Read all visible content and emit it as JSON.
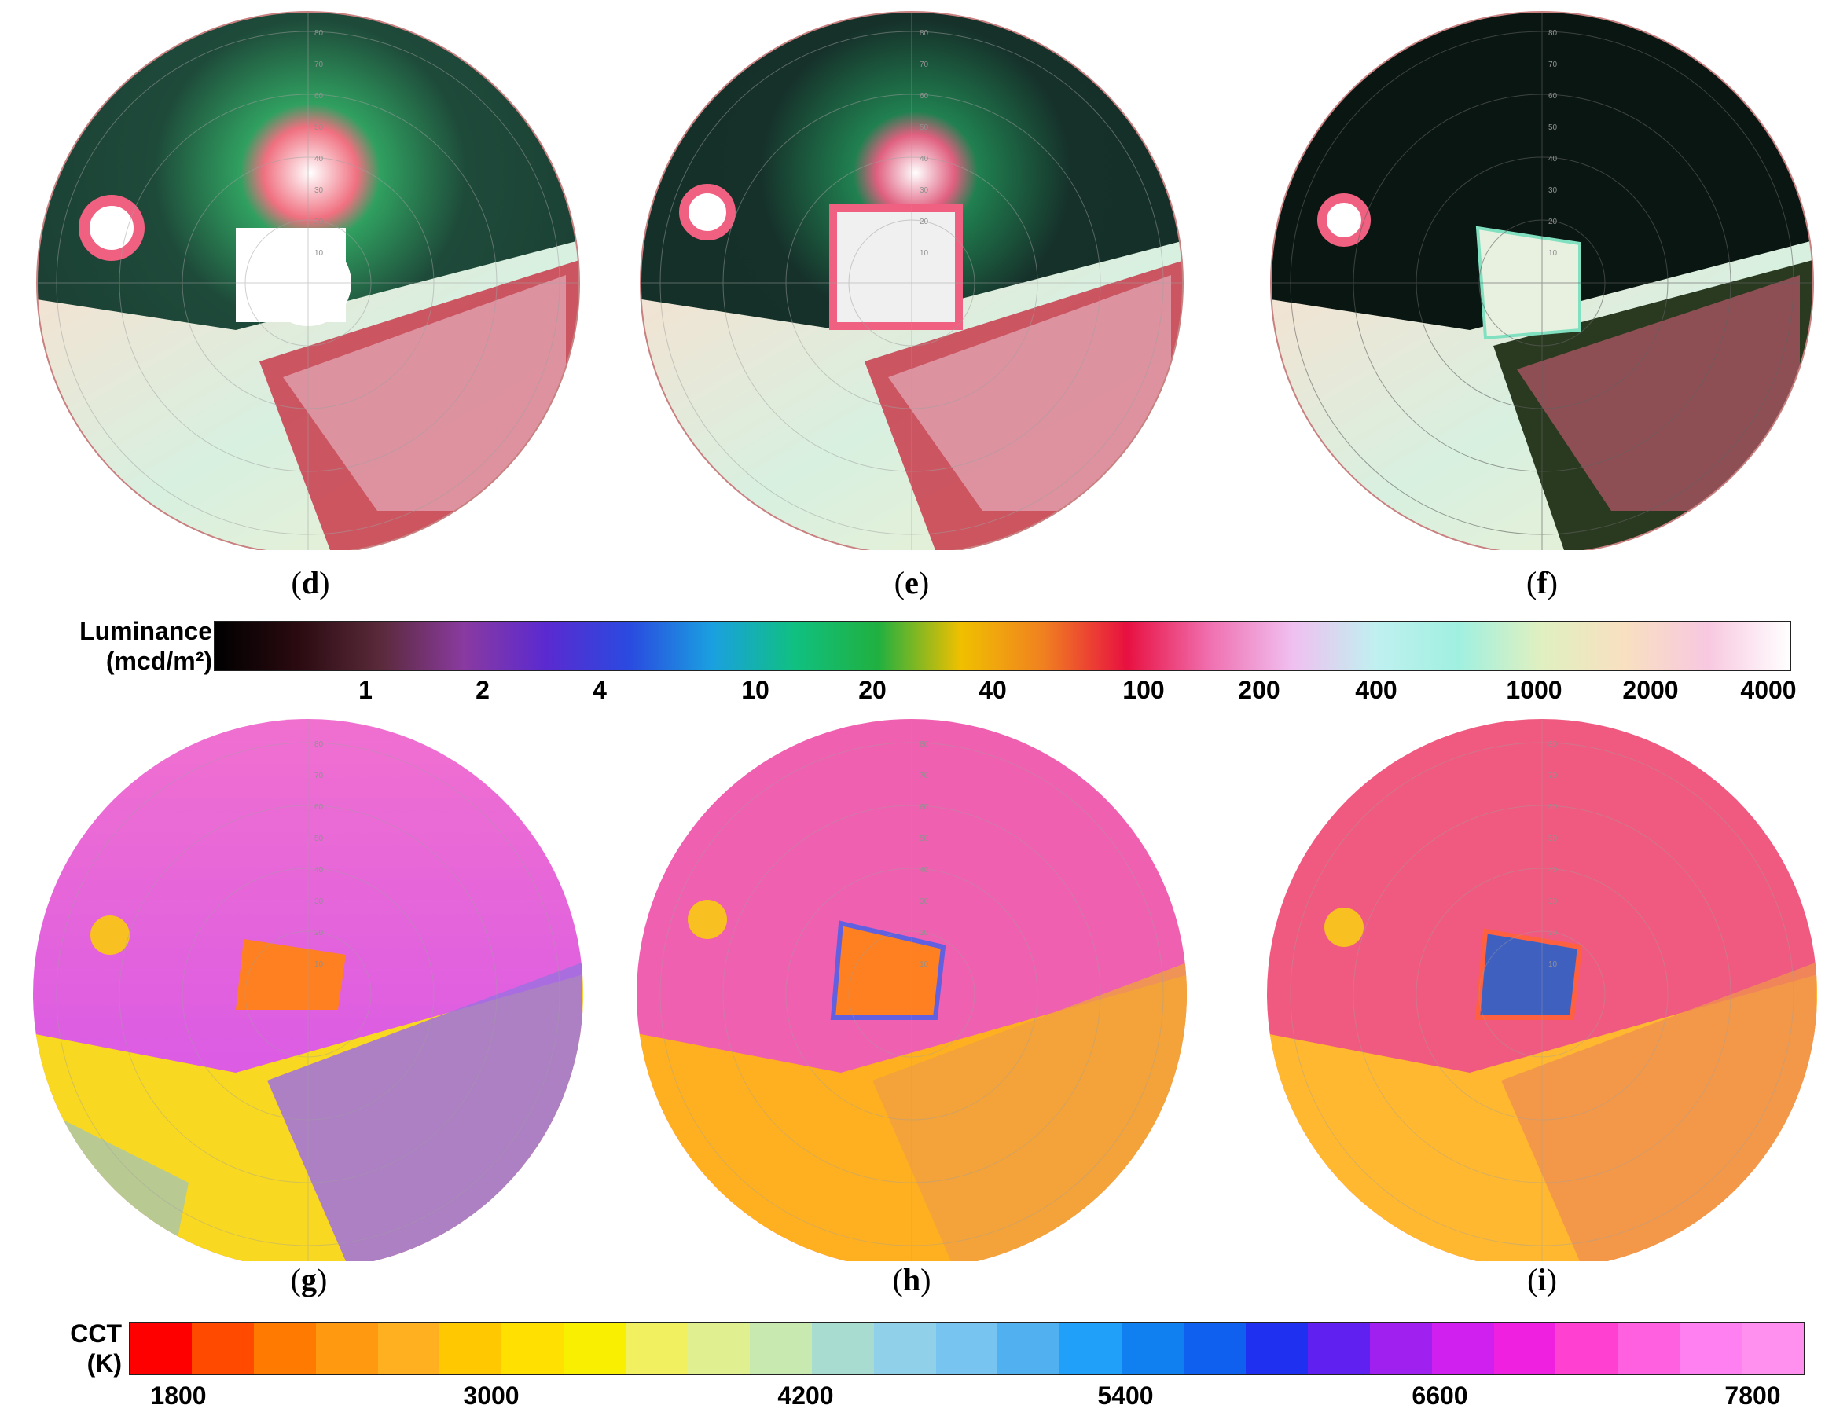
{
  "panels_top": [
    {
      "label": "d",
      "variant": "luminance"
    },
    {
      "label": "e",
      "variant": "luminance"
    },
    {
      "label": "f",
      "variant": "luminance-dark"
    }
  ],
  "panels_bottom": [
    {
      "label": "g",
      "variant": "cct"
    },
    {
      "label": "h",
      "variant": "cct"
    },
    {
      "label": "i",
      "variant": "cct"
    }
  ],
  "zenith_ticks": [
    "10",
    "20",
    "30",
    "40",
    "50",
    "60",
    "70",
    "80"
  ],
  "luminance_scale": {
    "title_line1": "Luminance",
    "title_line2": "(mcd/m²)",
    "ticks": [
      "1",
      "2",
      "4",
      "10",
      "20",
      "40",
      "100",
      "200",
      "400",
      "1000",
      "2000",
      "4000"
    ],
    "colors": [
      "#000000",
      "#2a0a10",
      "#5a2a3a",
      "#8a3aa0",
      "#5a2ad0",
      "#2a4ae0",
      "#1aa0e0",
      "#10c080",
      "#20b040",
      "#f0c000",
      "#f08020",
      "#e81040",
      "#f070b0",
      "#f0c0f0",
      "#c0f0f0",
      "#a0f0e0",
      "#e0f0c0",
      "#f8e0c0",
      "#f8c8e0",
      "#ffffff"
    ]
  },
  "cct_scale": {
    "title_line1": "CCT",
    "title_line2": "(K)",
    "ticks": [
      "1800",
      "3000",
      "4200",
      "5400",
      "6600",
      "7800"
    ],
    "colors": [
      "#ff0000",
      "#ff4a00",
      "#ff7a00",
      "#ff9a10",
      "#ffb020",
      "#ffc800",
      "#ffe000",
      "#f8f000",
      "#f0f060",
      "#e0f090",
      "#c8eab0",
      "#a8dcd0",
      "#90d0e8",
      "#78c4f0",
      "#50b0f0",
      "#20a0f8",
      "#1080f0",
      "#1060f0",
      "#2030f0",
      "#6020f0",
      "#a020f0",
      "#d020f0",
      "#f020e0",
      "#ff40d0",
      "#ff60e0",
      "#ff80f0",
      "#ff90f0"
    ]
  }
}
